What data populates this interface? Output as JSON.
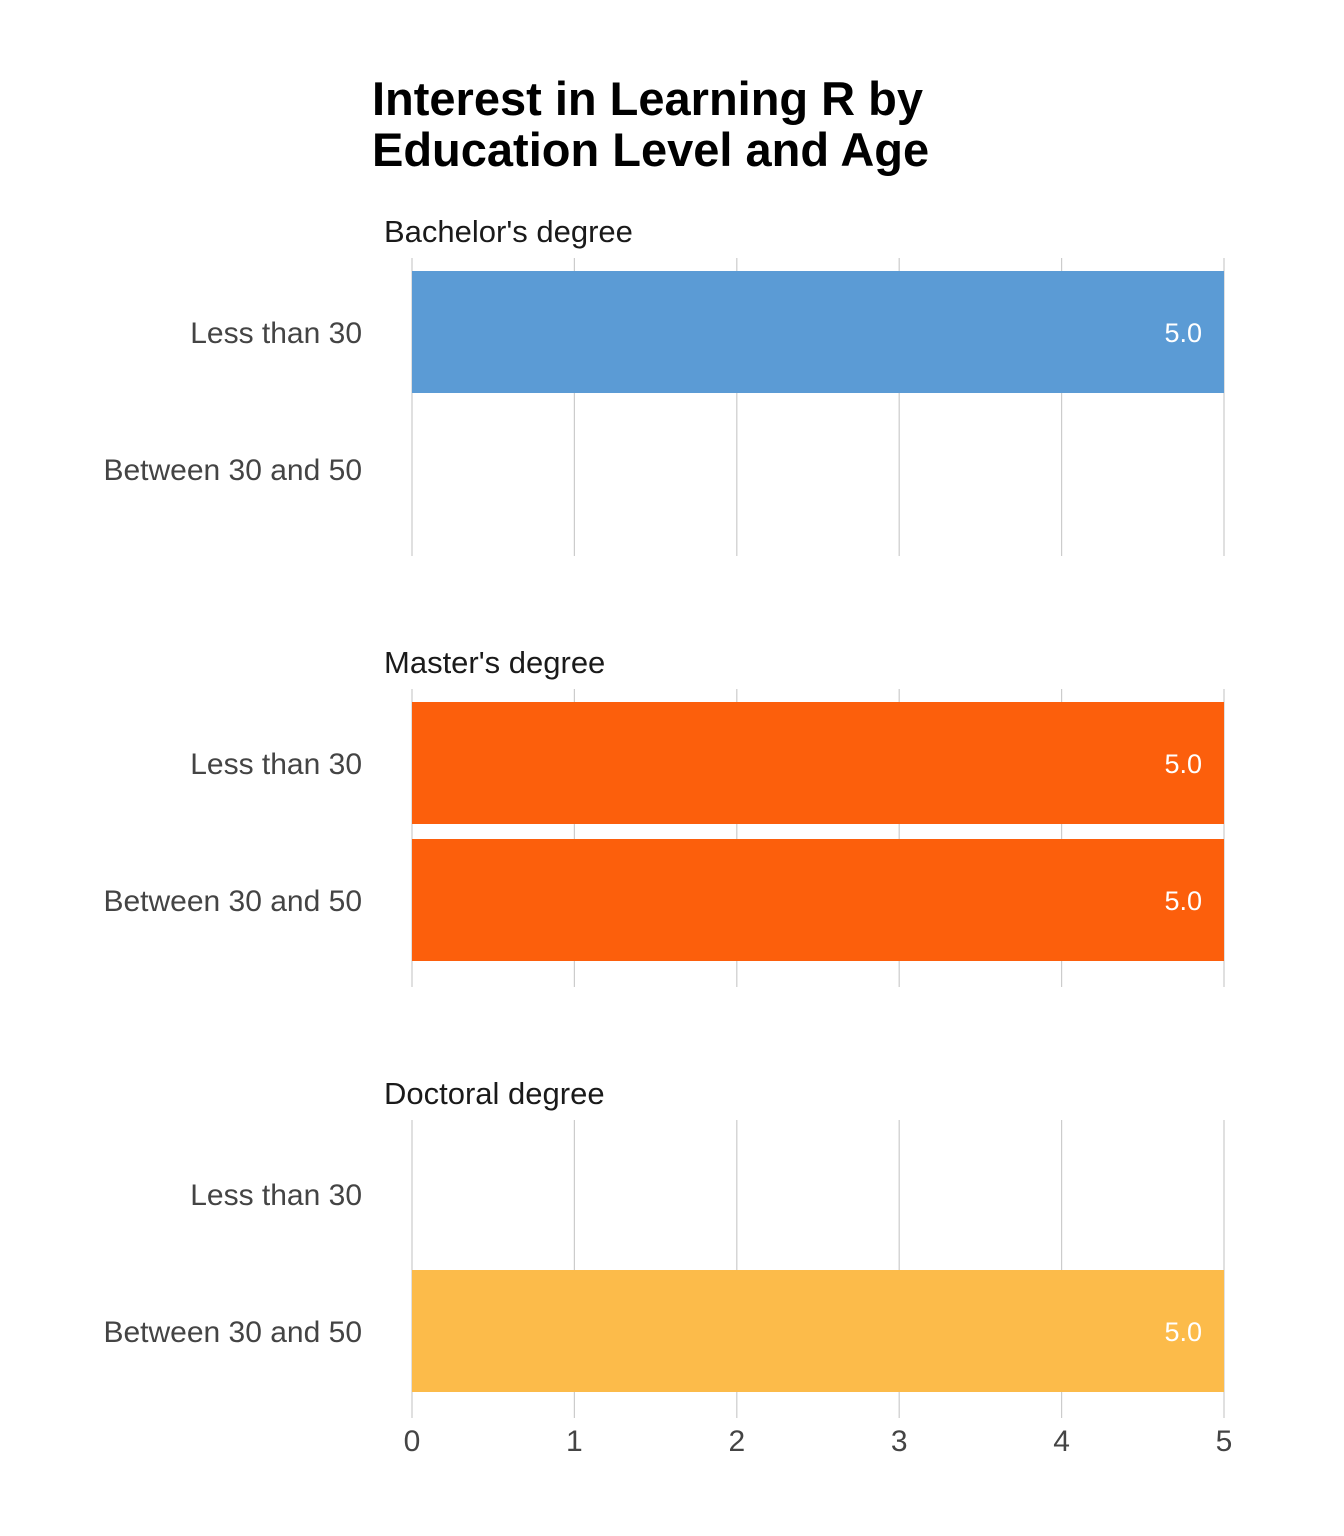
{
  "chart_data": {
    "type": "bar",
    "orientation": "horizontal",
    "title": "Interest in Learning R by Education Level and Age",
    "title_lines": [
      "Interest in Learning R by",
      "Education Level and Age"
    ],
    "xlim": [
      0,
      5
    ],
    "x_ticks": [
      "0",
      "1",
      "2",
      "3",
      "4",
      "5"
    ],
    "grid": true,
    "legend": "none",
    "categories": [
      "Less than 30",
      "Between 30 and 50"
    ],
    "panels": [
      {
        "name": "Bachelor's degree",
        "color": "#5b9bd5",
        "values": [
          5.0,
          null
        ],
        "labels": [
          "5.0",
          null
        ]
      },
      {
        "name": "Master's degree",
        "color": "#fc5f0c",
        "values": [
          5.0,
          5.0
        ],
        "labels": [
          "5.0",
          "5.0"
        ]
      },
      {
        "name": "Doctoral degree",
        "color": "#fcbb4a",
        "values": [
          null,
          5.0
        ],
        "labels": [
          null,
          "5.0"
        ]
      }
    ]
  }
}
